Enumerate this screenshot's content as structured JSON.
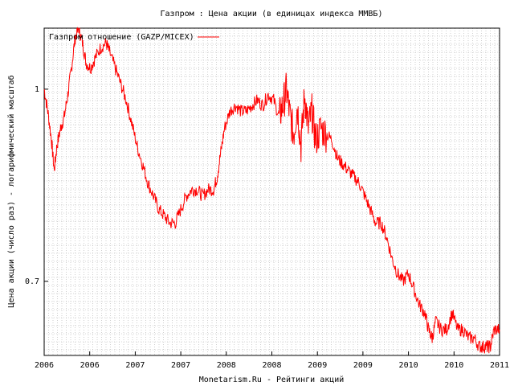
{
  "chart_data": {
    "type": "line",
    "title": "Газпром : Цена акции (в единицах индекса ММВБ)",
    "xlabel": "Monetarism.Ru - Рейтинги акций",
    "ylabel": "Цена акции (число раз) - логарифмический масштаб",
    "x_tick_labels": [
      "2006",
      "2006",
      "2007",
      "2007",
      "2008",
      "2008",
      "2009",
      "2009",
      "2010",
      "2010",
      "2011"
    ],
    "y_tick_labels": [
      "0.7",
      "1"
    ],
    "y_tick_values": [
      0.7,
      1.0
    ],
    "y_scale": "log",
    "ylim": [
      0.61,
      1.12
    ],
    "xlim": [
      2006.0,
      2011.0
    ],
    "grid": true,
    "legend_position": "top-left",
    "series": [
      {
        "name": "Газпром отношение (GAZP/MICEX)",
        "color": "#ff0000",
        "points": [
          [
            2006.0,
            1.0
          ],
          [
            2006.04,
            0.96
          ],
          [
            2006.08,
            0.91
          ],
          [
            2006.11,
            0.86
          ],
          [
            2006.14,
            0.9
          ],
          [
            2006.18,
            0.93
          ],
          [
            2006.22,
            0.95
          ],
          [
            2006.26,
            0.99
          ],
          [
            2006.3,
            1.04
          ],
          [
            2006.34,
            1.1
          ],
          [
            2006.38,
            1.12
          ],
          [
            2006.42,
            1.09
          ],
          [
            2006.46,
            1.05
          ],
          [
            2006.51,
            1.04
          ],
          [
            2006.56,
            1.06
          ],
          [
            2006.62,
            1.08
          ],
          [
            2006.68,
            1.09
          ],
          [
            2006.72,
            1.07
          ],
          [
            2006.78,
            1.04
          ],
          [
            2006.84,
            1.01
          ],
          [
            2006.9,
            0.98
          ],
          [
            2006.96,
            0.94
          ],
          [
            2007.02,
            0.9
          ],
          [
            2007.08,
            0.87
          ],
          [
            2007.14,
            0.84
          ],
          [
            2007.2,
            0.82
          ],
          [
            2007.26,
            0.8
          ],
          [
            2007.32,
            0.79
          ],
          [
            2007.38,
            0.78
          ],
          [
            2007.44,
            0.78
          ],
          [
            2007.5,
            0.8
          ],
          [
            2007.56,
            0.82
          ],
          [
            2007.62,
            0.83
          ],
          [
            2007.68,
            0.83
          ],
          [
            2007.74,
            0.82
          ],
          [
            2007.8,
            0.83
          ],
          [
            2007.86,
            0.83
          ],
          [
            2007.9,
            0.85
          ],
          [
            2007.94,
            0.89
          ],
          [
            2007.98,
            0.93
          ],
          [
            2008.04,
            0.96
          ],
          [
            2008.1,
            0.97
          ],
          [
            2008.16,
            0.96
          ],
          [
            2008.22,
            0.96
          ],
          [
            2008.28,
            0.97
          ],
          [
            2008.34,
            0.98
          ],
          [
            2008.4,
            0.97
          ],
          [
            2008.46,
            0.99
          ],
          [
            2008.52,
            0.98
          ],
          [
            2008.58,
            0.95
          ],
          [
            2008.62,
            0.97
          ],
          [
            2008.66,
            1.0
          ],
          [
            2008.7,
            0.95
          ],
          [
            2008.74,
            0.92
          ],
          [
            2008.78,
            0.97
          ],
          [
            2008.82,
            0.9
          ],
          [
            2008.86,
            0.99
          ],
          [
            2008.9,
            0.93
          ],
          [
            2008.94,
            0.96
          ],
          [
            2008.98,
            0.91
          ],
          [
            2009.04,
            0.93
          ],
          [
            2009.1,
            0.92
          ],
          [
            2009.16,
            0.91
          ],
          [
            2009.22,
            0.88
          ],
          [
            2009.28,
            0.87
          ],
          [
            2009.34,
            0.86
          ],
          [
            2009.4,
            0.85
          ],
          [
            2009.46,
            0.84
          ],
          [
            2009.52,
            0.82
          ],
          [
            2009.58,
            0.8
          ],
          [
            2009.64,
            0.78
          ],
          [
            2009.7,
            0.78
          ],
          [
            2009.76,
            0.76
          ],
          [
            2009.82,
            0.73
          ],
          [
            2009.88,
            0.71
          ],
          [
            2009.94,
            0.7
          ],
          [
            2010.0,
            0.71
          ],
          [
            2010.06,
            0.69
          ],
          [
            2010.12,
            0.67
          ],
          [
            2010.18,
            0.66
          ],
          [
            2010.22,
            0.64
          ],
          [
            2010.26,
            0.63
          ],
          [
            2010.3,
            0.65
          ],
          [
            2010.36,
            0.64
          ],
          [
            2010.42,
            0.64
          ],
          [
            2010.48,
            0.66
          ],
          [
            2010.54,
            0.64
          ],
          [
            2010.6,
            0.64
          ],
          [
            2010.66,
            0.63
          ],
          [
            2010.72,
            0.63
          ],
          [
            2010.78,
            0.62
          ],
          [
            2010.82,
            0.62
          ],
          [
            2010.86,
            0.62
          ],
          [
            2010.9,
            0.62
          ],
          [
            2010.94,
            0.64
          ],
          [
            2011.0,
            0.64
          ]
        ]
      }
    ]
  }
}
